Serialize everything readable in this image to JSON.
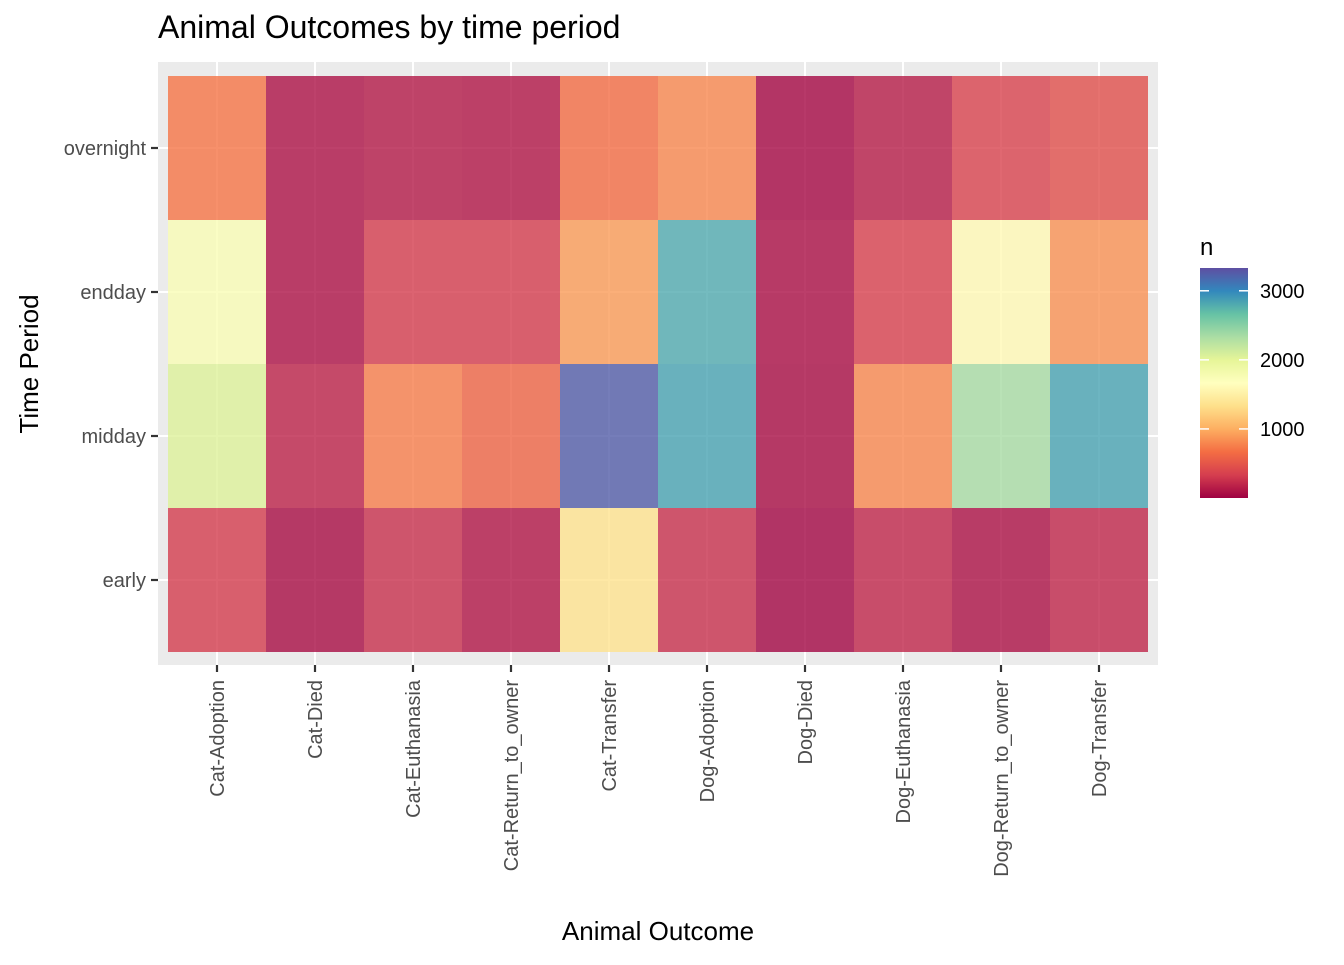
{
  "chart_data": {
    "type": "heatmap",
    "title": "Animal Outcomes by time period",
    "xlabel": "Animal Outcome",
    "ylabel": "Time Period",
    "x_categories": [
      "Cat-Adoption",
      "Cat-Died",
      "Cat-Euthanasia",
      "Cat-Return_to_owner",
      "Cat-Transfer",
      "Dog-Adoption",
      "Dog-Died",
      "Dog-Euthanasia",
      "Dog-Return_to_owner",
      "Dog-Transfer"
    ],
    "y_categories": [
      "early",
      "midday",
      "endday",
      "overnight"
    ],
    "values": [
      [
        320,
        60,
        250,
        110,
        1350,
        250,
        30,
        200,
        80,
        200
      ],
      [
        2050,
        180,
        750,
        600,
        3250,
        2850,
        60,
        800,
        2350,
        2850
      ],
      [
        1750,
        90,
        320,
        320,
        900,
        2800,
        70,
        350,
        1600,
        850
      ],
      [
        700,
        90,
        130,
        110,
        650,
        800,
        40,
        140,
        360,
        450
      ]
    ],
    "legend": {
      "title": "n",
      "ticks": [
        1000,
        2000,
        3000
      ],
      "range": [
        0,
        3330
      ],
      "colors": [
        "#9E0142",
        "#D53E4F",
        "#F46D43",
        "#FDAE61",
        "#FEE08B",
        "#FFFFBF",
        "#E6F598",
        "#ABDDA4",
        "#66C2A5",
        "#3288BD",
        "#5E4FA2"
      ],
      "placement": "right"
    },
    "grid": true,
    "panel_background": "#EBEBEB"
  }
}
